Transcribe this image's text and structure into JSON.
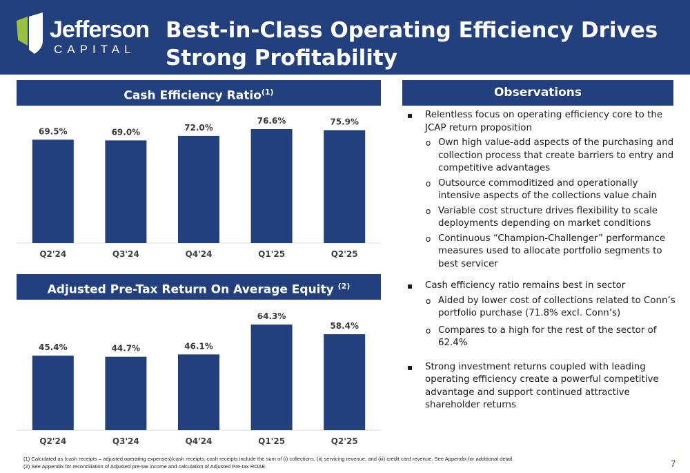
{
  "brand": {
    "name": "Jefferson",
    "sub": "CAPITAL",
    "color_primary": "#223f7e",
    "color_accent": "#9bc03b"
  },
  "slide": {
    "title": "Best-in-Class Operating Efficiency Drives Strong Profitability",
    "page_number": "7"
  },
  "panels": {
    "cash_efficiency_header": "Cash Efficiency Ratio",
    "cash_efficiency_sup": "(1)",
    "roae_header": "Adjusted Pre-Tax Return On Average Equity",
    "roae_sup": "(2)",
    "observations_header": "Observations"
  },
  "chart_data": [
    {
      "type": "bar",
      "title": "Cash Efficiency Ratio",
      "categories": [
        "Q2'24",
        "Q3'24",
        "Q4'24",
        "Q1'25",
        "Q2'25"
      ],
      "values": [
        69.5,
        69.0,
        72.0,
        76.6,
        75.9
      ],
      "labels": [
        "69.5%",
        "69.0%",
        "72.0%",
        "76.6%",
        "75.9%"
      ],
      "unit": "%",
      "bar_color": "#223f7e",
      "grid": false,
      "legend": "none"
    },
    {
      "type": "bar",
      "title": "Adjusted Pre-Tax Return On Average Equity",
      "categories": [
        "Q2'24",
        "Q3'24",
        "Q4'24",
        "Q1'25",
        "Q2'25"
      ],
      "values": [
        45.4,
        44.7,
        46.1,
        64.3,
        58.4
      ],
      "labels": [
        "45.4%",
        "44.7%",
        "46.1%",
        "64.3%",
        "58.4%"
      ],
      "unit": "%",
      "bar_color": "#223f7e",
      "grid": false,
      "legend": "none"
    }
  ],
  "observations": [
    {
      "text": "Relentless focus on operating efficiency core to the JCAP return proposition",
      "sub": [
        "Own high value-add aspects of the purchasing and collection process that create barriers to entry and competitive advantages",
        "Outsource commoditized and operationally intensive aspects of the collections value chain",
        "Variable cost structure drives flexibility to scale deployments depending on market conditions",
        "Continuous “Champion-Challenger” performance measures used to allocate portfolio segments to best servicer"
      ]
    },
    {
      "text": "Cash efficiency ratio remains best in sector",
      "sub": [
        "Aided by lower cost of collections related to Conn’s portfolio purchase (71.8% excl. Conn’s)",
        "Compares to a high for the rest of the sector of 62.4%"
      ]
    },
    {
      "text": "Strong investment returns coupled with leading operating efficiency create a powerful competitive advantage and support continued attractive shareholder returns",
      "sub": []
    }
  ],
  "footnotes": [
    "(1) Calculated as (cash receipts – adjusted operating expenses)/cash receipts; cash receipts include the sum of (i) collections, (ii) servicing revenue, and (iii) credit card revenue. See Appendix for additional detail.",
    "(2) See Appendix for reconciliation of Adjusted pre-tax income and calculation of Adjusted Pre-tax ROAE."
  ]
}
